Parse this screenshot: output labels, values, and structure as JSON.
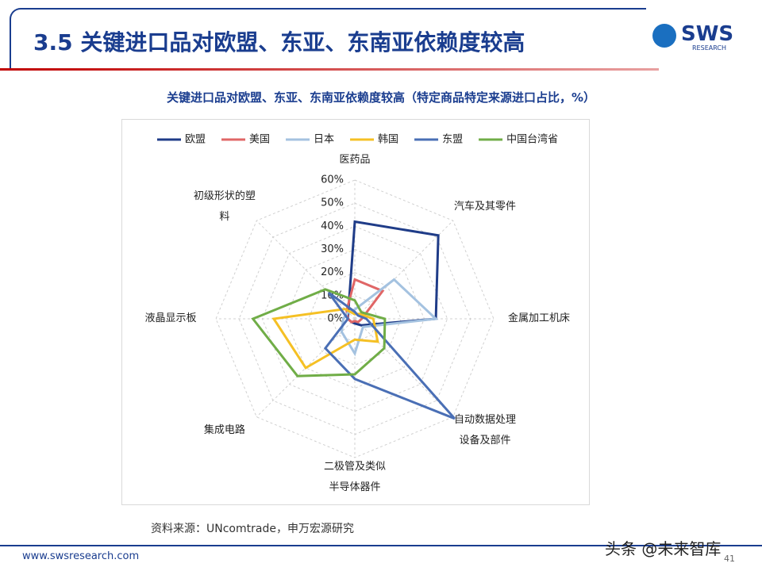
{
  "header": {
    "title": "3.5 关键进口品对欧盟、东亚、东南亚依赖度较高",
    "logo": "SWS",
    "logo_sub": "RESEARCH"
  },
  "chart_data": {
    "type": "radar",
    "title": "关键进口品对欧盟、东亚、东南亚依赖度较高（特定商品特定来源进口占比，%）",
    "categories": [
      "医药品",
      "汽车及其零件",
      "金属加工机床",
      "自动数据处理设备及部件",
      "二极管及类似半导体器件",
      "集成电路",
      "液晶显示板",
      "初级形状的塑料"
    ],
    "series": [
      {
        "name": "欧盟",
        "color": "#1f3c88",
        "values": [
          42,
          51,
          35,
          4,
          2,
          2,
          3,
          4
        ]
      },
      {
        "name": "美国",
        "color": "#e06666",
        "values": [
          17,
          17,
          3,
          2,
          1,
          2,
          3,
          5
        ]
      },
      {
        "name": "日本",
        "color": "#a4c2e0",
        "values": [
          4,
          24,
          35,
          5,
          15,
          8,
          5,
          4
        ]
      },
      {
        "name": "韩国",
        "color": "#f5c024",
        "values": [
          2,
          3,
          8,
          14,
          9,
          30,
          35,
          6
        ]
      },
      {
        "name": "东盟",
        "color": "#4a6fb5",
        "values": [
          3,
          2,
          5,
          61,
          26,
          18,
          3,
          16
        ]
      },
      {
        "name": "中国台湾省",
        "color": "#70ad47",
        "values": [
          8,
          4,
          13,
          18,
          24,
          35,
          44,
          18
        ]
      }
    ],
    "ylim": [
      0,
      60
    ],
    "yticks": [
      {
        "value": 0,
        "label": "0%"
      },
      {
        "value": 10,
        "label": "10%"
      },
      {
        "value": 20,
        "label": "20%"
      },
      {
        "value": 30,
        "label": "30%"
      },
      {
        "value": 40,
        "label": "40%"
      },
      {
        "value": 50,
        "label": "50%"
      },
      {
        "value": 60,
        "label": "60%"
      }
    ],
    "grid": true,
    "legend": "top",
    "source": "资料来源：UNcomtrade，申万宏源研究"
  },
  "footer": {
    "url": "www.swsresearch.com",
    "page": "41",
    "watermark": "头条 @未来智库"
  }
}
